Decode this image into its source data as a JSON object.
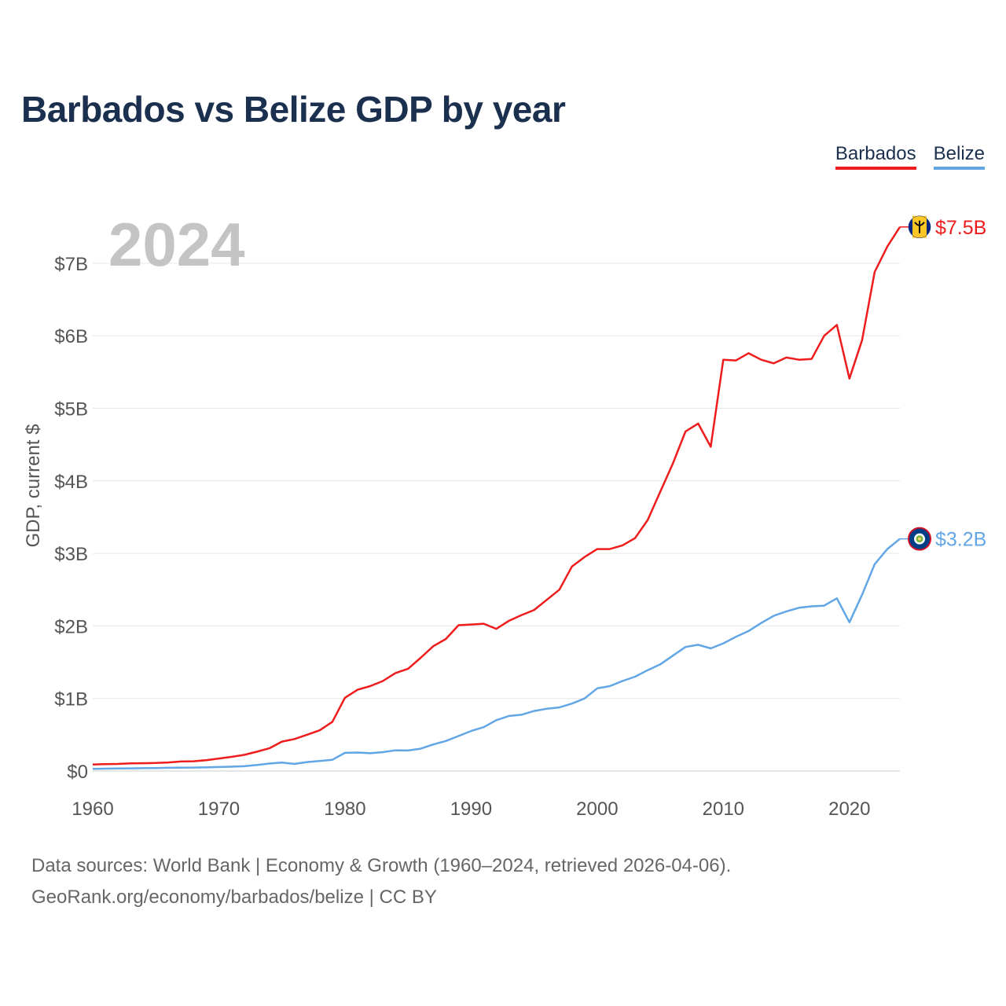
{
  "title": "Barbados vs Belize GDP by year",
  "legend": [
    {
      "name": "Barbados",
      "color": "#ee1c1c"
    },
    {
      "name": "Belize",
      "color": "#62a6e6"
    }
  ],
  "footer": {
    "line1": "Data sources: World Bank | Economy & Growth (1960–2024, retrieved 2026-04-06).",
    "line2": "GeoRank.org/economy/barbados/belize | CC BY"
  },
  "chart_data": {
    "type": "line",
    "title": "Barbados vs Belize GDP by year",
    "year_label": "2024",
    "ylabel": "GDP, current $",
    "xlabel": "",
    "xlim": [
      1960,
      2024
    ],
    "ylim": [
      0,
      7500000000
    ],
    "x_ticks": [
      1960,
      1970,
      1980,
      1990,
      2000,
      2010,
      2020
    ],
    "y_ticks": [
      0,
      1000000000,
      2000000000,
      3000000000,
      4000000000,
      5000000000,
      6000000000,
      7000000000
    ],
    "y_tick_labels": [
      "$0",
      "$1B",
      "$2B",
      "$3B",
      "$4B",
      "$5B",
      "$6B",
      "$7B"
    ],
    "grid": true,
    "legend_position": "top-right",
    "x": [
      1960,
      1961,
      1962,
      1963,
      1964,
      1965,
      1966,
      1967,
      1968,
      1969,
      1970,
      1971,
      1972,
      1973,
      1974,
      1975,
      1976,
      1977,
      1978,
      1979,
      1980,
      1981,
      1982,
      1983,
      1984,
      1985,
      1986,
      1987,
      1988,
      1989,
      1990,
      1991,
      1992,
      1993,
      1994,
      1995,
      1996,
      1997,
      1998,
      1999,
      2000,
      2001,
      2002,
      2003,
      2004,
      2005,
      2006,
      2007,
      2008,
      2009,
      2010,
      2011,
      2012,
      2013,
      2014,
      2015,
      2016,
      2017,
      2018,
      2019,
      2020,
      2021,
      2022,
      2023,
      2024
    ],
    "series": [
      {
        "name": "Barbados",
        "color": "#ee1c1c",
        "end_label": "$7.5B",
        "values": [
          0.09,
          0.095,
          0.097,
          0.105,
          0.107,
          0.111,
          0.118,
          0.131,
          0.134,
          0.149,
          0.172,
          0.195,
          0.222,
          0.265,
          0.313,
          0.405,
          0.441,
          0.501,
          0.561,
          0.678,
          1.01,
          1.12,
          1.17,
          1.24,
          1.35,
          1.41,
          1.56,
          1.72,
          1.82,
          2.01,
          2.02,
          2.03,
          1.96,
          2.07,
          2.15,
          2.22,
          2.36,
          2.5,
          2.82,
          2.95,
          3.06,
          3.06,
          3.11,
          3.21,
          3.46,
          3.85,
          4.24,
          4.68,
          4.79,
          4.47,
          5.67,
          5.66,
          5.76,
          5.67,
          5.62,
          5.7,
          5.67,
          5.68,
          6.0,
          6.15,
          5.41,
          5.94,
          6.88,
          7.23,
          7.5
        ]
      },
      {
        "name": "Belize",
        "color": "#62a6e6",
        "end_label": "$3.2B",
        "values": [
          0.03,
          0.033,
          0.035,
          0.037,
          0.039,
          0.041,
          0.044,
          0.047,
          0.048,
          0.05,
          0.055,
          0.06,
          0.066,
          0.082,
          0.103,
          0.117,
          0.097,
          0.123,
          0.139,
          0.155,
          0.25,
          0.255,
          0.245,
          0.26,
          0.285,
          0.283,
          0.308,
          0.366,
          0.414,
          0.482,
          0.551,
          0.605,
          0.701,
          0.758,
          0.776,
          0.828,
          0.858,
          0.877,
          0.93,
          1.0,
          1.14,
          1.17,
          1.24,
          1.3,
          1.39,
          1.47,
          1.59,
          1.71,
          1.74,
          1.69,
          1.76,
          1.85,
          1.93,
          2.04,
          2.14,
          2.2,
          2.25,
          2.27,
          2.28,
          2.38,
          2.05,
          2.43,
          2.85,
          3.06,
          3.2
        ]
      }
    ]
  }
}
